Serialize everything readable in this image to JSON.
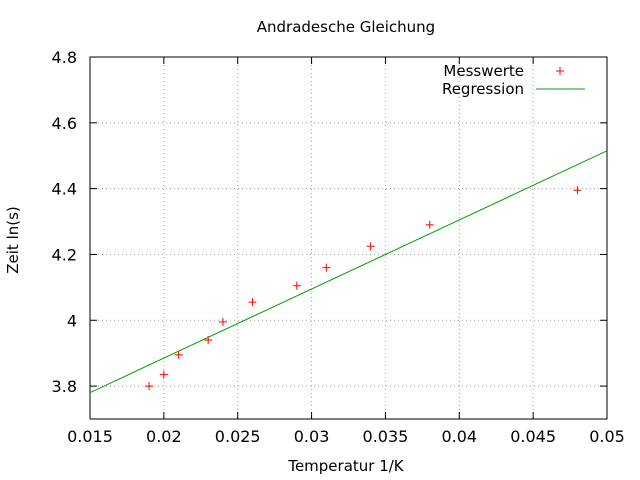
{
  "chart_data": {
    "type": "scatter",
    "title": "Andradesche Gleichung",
    "xlabel": "Temperatur 1/K",
    "ylabel": "Zeit ln(s)",
    "xlim": [
      0.015,
      0.05
    ],
    "ylim": [
      3.7,
      4.8
    ],
    "x_ticks": [
      "0.015",
      "0.02",
      "0.025",
      "0.03",
      "0.035",
      "0.04",
      "0.045",
      "0.05"
    ],
    "y_ticks": [
      "3.8",
      "4",
      "4.2",
      "4.4",
      "4.6",
      "4.8"
    ],
    "x_tick_values": [
      0.015,
      0.02,
      0.025,
      0.03,
      0.035,
      0.04,
      0.045,
      0.05
    ],
    "y_tick_values": [
      3.8,
      4.0,
      4.2,
      4.4,
      4.6,
      4.8
    ],
    "grid": true,
    "legend_position": "top-right",
    "series": [
      {
        "name": "Messwerte",
        "kind": "points",
        "marker": "plus",
        "color": "#ff0000",
        "x": [
          0.019,
          0.02,
          0.021,
          0.023,
          0.024,
          0.026,
          0.029,
          0.031,
          0.034,
          0.038,
          0.048
        ],
        "y": [
          3.8,
          3.835,
          3.895,
          3.94,
          3.995,
          4.055,
          4.105,
          4.16,
          4.225,
          4.29,
          4.395
        ]
      },
      {
        "name": "Regression",
        "kind": "line",
        "color": "#00a000",
        "x": [
          0.015,
          0.05
        ],
        "y": [
          3.78,
          4.515
        ]
      }
    ]
  }
}
